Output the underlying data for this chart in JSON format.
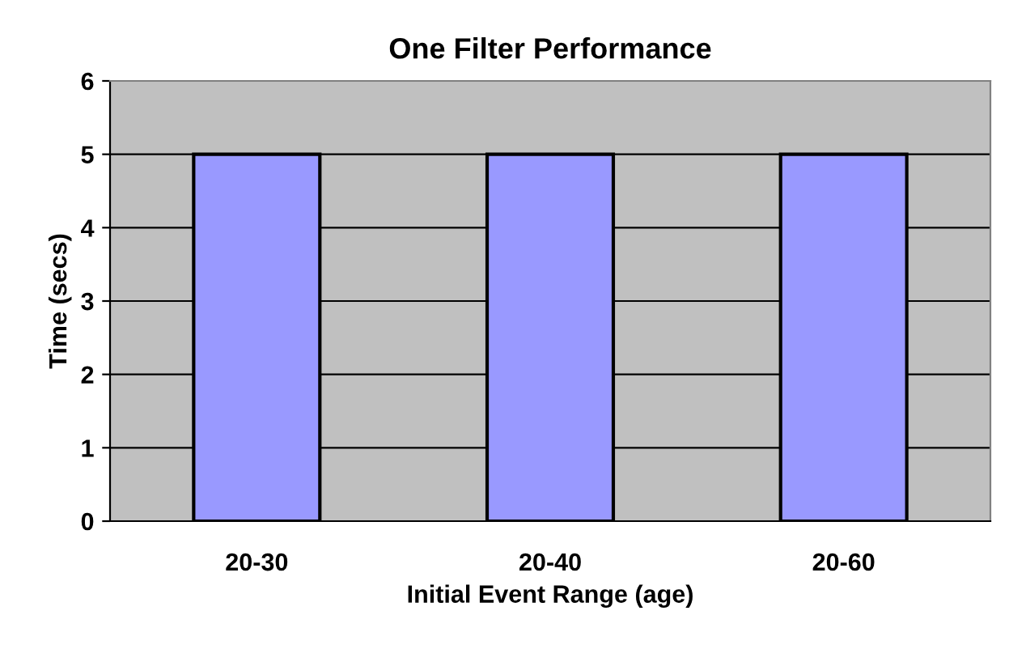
{
  "chart_data": {
    "type": "bar",
    "title": "One Filter Performance",
    "xlabel": "Initial Event Range (age)",
    "ylabel": "Time (secs)",
    "categories": [
      "20-30",
      "20-40",
      "20-60"
    ],
    "values": [
      5,
      5,
      5
    ],
    "color": "#9999ff",
    "ylim": [
      0,
      6
    ],
    "yticks": [
      0,
      1,
      2,
      3,
      4,
      5,
      6
    ],
    "grid": "y",
    "legend": false
  }
}
